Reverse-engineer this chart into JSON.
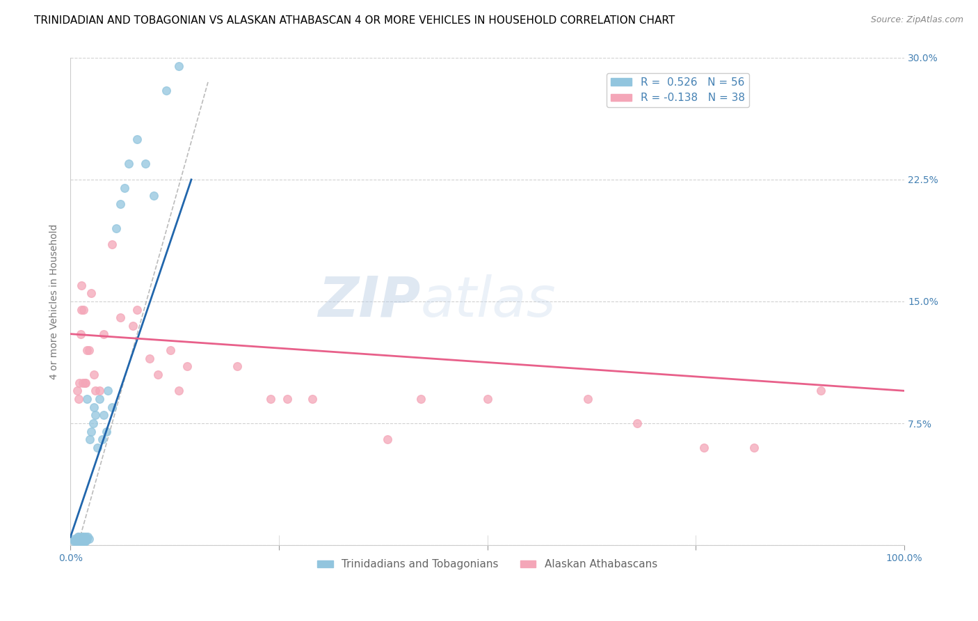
{
  "title": "TRINIDADIAN AND TOBAGONIAN VS ALASKAN ATHABASCAN 4 OR MORE VEHICLES IN HOUSEHOLD CORRELATION CHART",
  "source": "Source: ZipAtlas.com",
  "ylabel": "4 or more Vehicles in Household",
  "xlim": [
    0,
    1.0
  ],
  "ylim": [
    0,
    0.3
  ],
  "blue_R": 0.526,
  "blue_N": 56,
  "pink_R": -0.138,
  "pink_N": 38,
  "blue_color": "#92c5de",
  "pink_color": "#f4a6b8",
  "blue_line_color": "#2166ac",
  "pink_line_color": "#e8608a",
  "watermark": "ZIPatlas",
  "legend_label_blue": "Trinidadians and Tobagonians",
  "legend_label_pink": "Alaskan Athabascans",
  "blue_points_x": [
    0.005,
    0.005,
    0.005,
    0.007,
    0.007,
    0.008,
    0.008,
    0.009,
    0.009,
    0.009,
    0.01,
    0.01,
    0.01,
    0.01,
    0.011,
    0.011,
    0.012,
    0.012,
    0.013,
    0.013,
    0.014,
    0.014,
    0.015,
    0.015,
    0.016,
    0.016,
    0.017,
    0.017,
    0.018,
    0.018,
    0.019,
    0.02,
    0.02,
    0.021,
    0.022,
    0.023,
    0.025,
    0.027,
    0.028,
    0.03,
    0.032,
    0.035,
    0.038,
    0.04,
    0.043,
    0.045,
    0.05,
    0.055,
    0.06,
    0.065,
    0.07,
    0.08,
    0.09,
    0.1,
    0.115,
    0.13
  ],
  "blue_points_y": [
    0.002,
    0.003,
    0.004,
    0.002,
    0.003,
    0.002,
    0.003,
    0.002,
    0.003,
    0.005,
    0.002,
    0.003,
    0.004,
    0.005,
    0.002,
    0.003,
    0.002,
    0.004,
    0.002,
    0.003,
    0.002,
    0.005,
    0.002,
    0.004,
    0.003,
    0.005,
    0.002,
    0.004,
    0.003,
    0.005,
    0.003,
    0.004,
    0.09,
    0.005,
    0.004,
    0.065,
    0.07,
    0.075,
    0.085,
    0.08,
    0.06,
    0.09,
    0.065,
    0.08,
    0.07,
    0.095,
    0.085,
    0.195,
    0.21,
    0.22,
    0.235,
    0.25,
    0.235,
    0.215,
    0.28,
    0.295
  ],
  "pink_points_x": [
    0.008,
    0.01,
    0.011,
    0.012,
    0.013,
    0.013,
    0.015,
    0.016,
    0.017,
    0.018,
    0.02,
    0.022,
    0.025,
    0.028,
    0.03,
    0.035,
    0.04,
    0.05,
    0.06,
    0.075,
    0.08,
    0.095,
    0.105,
    0.12,
    0.13,
    0.14,
    0.2,
    0.24,
    0.26,
    0.29,
    0.38,
    0.42,
    0.5,
    0.62,
    0.68,
    0.76,
    0.82,
    0.9
  ],
  "pink_points_y": [
    0.095,
    0.09,
    0.1,
    0.13,
    0.145,
    0.16,
    0.1,
    0.145,
    0.1,
    0.1,
    0.12,
    0.12,
    0.155,
    0.105,
    0.095,
    0.095,
    0.13,
    0.185,
    0.14,
    0.135,
    0.145,
    0.115,
    0.105,
    0.12,
    0.095,
    0.11,
    0.11,
    0.09,
    0.09,
    0.09,
    0.065,
    0.09,
    0.09,
    0.09,
    0.075,
    0.06,
    0.06,
    0.095
  ],
  "blue_line_x1": 0.0,
  "blue_line_y1": 0.005,
  "blue_line_x2": 0.145,
  "blue_line_y2": 0.225,
  "pink_line_x1": 0.0,
  "pink_line_y1": 0.13,
  "pink_line_x2": 1.0,
  "pink_line_y2": 0.095,
  "dashed_line_x1": 0.01,
  "dashed_line_y1": 0.002,
  "dashed_line_x2": 0.165,
  "dashed_line_y2": 0.285,
  "background_color": "#ffffff",
  "grid_color": "#cccccc",
  "title_fontsize": 11,
  "axis_label_fontsize": 10,
  "tick_fontsize": 10,
  "marker_size": 70
}
